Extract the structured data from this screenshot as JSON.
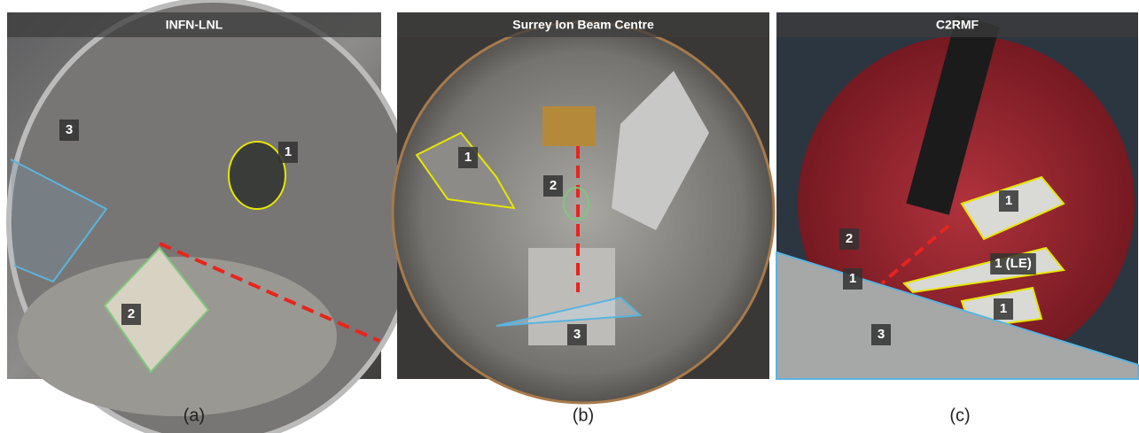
{
  "panels": [
    {
      "title": "INFN-LNL",
      "caption": "(a)",
      "labels": [
        "3",
        "1",
        "2"
      ]
    },
    {
      "title": "Surrey Ion Beam Centre",
      "caption": "(b)",
      "labels": [
        "1",
        "2",
        "3"
      ]
    },
    {
      "title": "C2RMF",
      "caption": "(c)",
      "labels": [
        "1",
        "2",
        "1",
        "1 (LE)",
        "1",
        "3"
      ]
    }
  ]
}
